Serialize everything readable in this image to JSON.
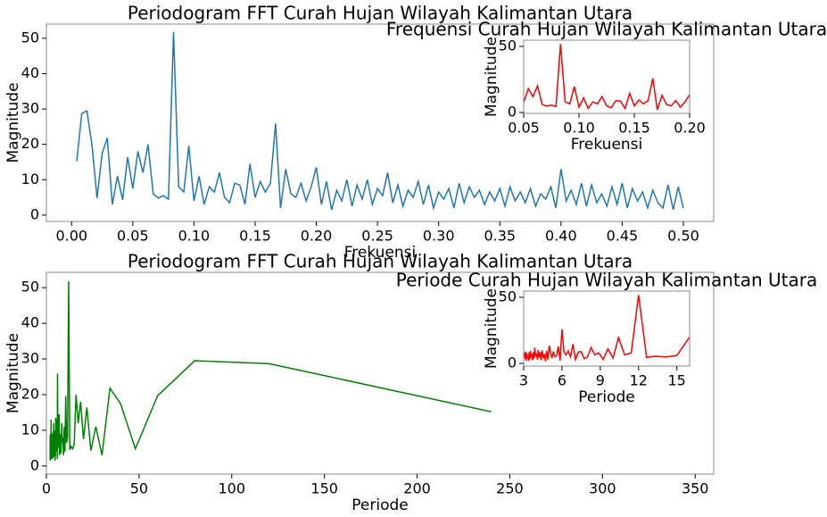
{
  "chart_data": [
    {
      "type": "line",
      "title": "Periodogram FFT Curah Hujan Wilayah Kalimantan Utara",
      "xlabel": "Frekuensi",
      "ylabel": "Magnitude",
      "color": "#1f77b4",
      "x": [
        0.0042,
        0.0083,
        0.0125,
        0.0167,
        0.0208,
        0.025,
        0.0292,
        0.0333,
        0.0375,
        0.0417,
        0.0458,
        0.05,
        0.0542,
        0.0583,
        0.0625,
        0.0667,
        0.0708,
        0.075,
        0.0792,
        0.0833,
        0.0875,
        0.0917,
        0.0958,
        0.1,
        0.1042,
        0.1083,
        0.1125,
        0.1167,
        0.1208,
        0.125,
        0.1292,
        0.1333,
        0.1375,
        0.1417,
        0.1458,
        0.15,
        0.1542,
        0.1583,
        0.1625,
        0.1667,
        0.1708,
        0.175,
        0.1792,
        0.1833,
        0.1875,
        0.1917,
        0.1958,
        0.2,
        0.2042,
        0.2083,
        0.2125,
        0.2167,
        0.2208,
        0.225,
        0.2292,
        0.2333,
        0.2375,
        0.2417,
        0.2458,
        0.25,
        0.2542,
        0.2583,
        0.2625,
        0.2667,
        0.2708,
        0.275,
        0.2792,
        0.2833,
        0.2875,
        0.2917,
        0.2958,
        0.3,
        0.3042,
        0.3083,
        0.3125,
        0.3167,
        0.3208,
        0.325,
        0.3292,
        0.3333,
        0.3375,
        0.3417,
        0.3458,
        0.35,
        0.3542,
        0.3583,
        0.3625,
        0.3667,
        0.3708,
        0.375,
        0.3792,
        0.3833,
        0.3875,
        0.3917,
        0.3958,
        0.4,
        0.4042,
        0.4083,
        0.4125,
        0.4167,
        0.4208,
        0.425,
        0.4292,
        0.4333,
        0.4375,
        0.4417,
        0.4458,
        0.45,
        0.4542,
        0.4583,
        0.4625,
        0.4667,
        0.4708,
        0.475,
        0.4792,
        0.4833,
        0.4875,
        0.4917,
        0.4958,
        0.5
      ],
      "values": [
        15.2,
        28.7,
        29.5,
        19.7,
        4.8,
        17.5,
        21.8,
        3.0,
        11.0,
        4.3,
        16.4,
        7.5,
        18.0,
        12.0,
        20.0,
        6.0,
        4.8,
        5.5,
        4.5,
        51.8,
        8.0,
        6.5,
        19.6,
        4.0,
        11.0,
        3.0,
        8.0,
        6.5,
        12.0,
        5.0,
        3.5,
        9.0,
        8.5,
        3.0,
        14.5,
        5.0,
        9.5,
        6.5,
        9.0,
        25.9,
        2.0,
        13.0,
        6.0,
        5.0,
        9.0,
        4.0,
        8.0,
        13.5,
        3.0,
        9.5,
        1.5,
        7.0,
        4.0,
        10.0,
        2.5,
        8.5,
        4.5,
        10.0,
        3.0,
        7.5,
        5.5,
        12.0,
        3.5,
        8.5,
        2.5,
        7.0,
        5.0,
        9.5,
        3.0,
        8.5,
        2.0,
        6.5,
        4.5,
        7.5,
        2.0,
        9.0,
        3.5,
        8.0,
        5.0,
        7.0,
        3.0,
        6.5,
        4.0,
        7.5,
        2.5,
        8.0,
        4.0,
        6.5,
        3.5,
        7.5,
        2.5,
        6.0,
        4.5,
        8.0,
        2.0,
        13.0,
        4.0,
        7.0,
        3.0,
        9.0,
        2.5,
        8.5,
        3.5,
        6.0,
        2.5,
        8.0,
        3.0,
        9.0,
        2.0,
        7.5,
        4.0,
        6.5,
        2.0,
        7.0,
        3.5,
        2.0,
        8.5,
        1.5,
        8.0,
        2.0
      ],
      "xlim": [
        -0.0206,
        0.5248
      ],
      "ylim": [
        -1.8,
        54.0
      ],
      "xticks": [
        {
          "value": 0,
          "label": "0.00"
        },
        0.05,
        {
          "value": 0.1,
          "label": "0.10"
        },
        0.15,
        {
          "value": 0.2,
          "label": "0.20"
        },
        0.25,
        {
          "value": 0.3,
          "label": "0.30"
        },
        0.35,
        {
          "value": 0.4,
          "label": "0.40"
        },
        0.45,
        {
          "value": 0.5,
          "label": "0.50"
        }
      ],
      "yticks": [
        0,
        10,
        20,
        30,
        40,
        50
      ],
      "inset": {
        "title": "Frequensi Curah Hujan Wilayah Kalimantan Utara",
        "xlabel": "Frekuensi",
        "ylabel": "Magnitude",
        "color": "#ff0000",
        "xlim": [
          0.05,
          0.2
        ],
        "ylim": [
          -0.7,
          54.7
        ],
        "xticks": [
          0.05,
          {
            "value": 0.1,
            "label": "0.10"
          },
          0.15,
          {
            "value": 0.2,
            "label": "0.20"
          }
        ],
        "yticks": [
          0,
          50
        ]
      }
    },
    {
      "type": "line",
      "title": "Periodogram FFT Curah Hujan Wilayah Kalimantan Utara",
      "xlabel": "Periode",
      "ylabel": "Magnitude",
      "color": "#008000",
      "x": [
        240,
        120,
        80,
        60,
        48,
        40,
        34.29,
        30,
        26.67,
        24,
        21.82,
        20,
        18.46,
        17.14,
        16,
        15,
        14.12,
        13.33,
        12.63,
        12,
        11.43,
        10.91,
        10.43,
        10,
        9.6,
        9.23,
        8.89,
        8.57,
        8.28,
        8,
        7.74,
        7.5,
        7.27,
        7.06,
        6.86,
        6.67,
        6.49,
        6.32,
        6.15,
        6,
        5.85,
        5.71,
        5.58,
        5.45,
        5.33,
        5.22,
        5.11,
        5,
        4.9,
        4.8,
        4.71,
        4.62,
        4.53,
        4.44,
        4.36,
        4.29,
        4.21,
        4.14,
        4.07,
        4,
        3.93,
        3.87,
        3.81,
        3.75,
        3.69,
        3.64,
        3.58,
        3.53,
        3.48,
        3.43,
        3.38,
        3.33,
        3.29,
        3.24,
        3.2,
        3.16,
        3.12,
        3.08,
        3.04,
        3,
        2.96,
        2.93,
        2.89,
        2.86,
        2.82,
        2.79,
        2.76,
        2.73,
        2.7,
        2.67,
        2.64,
        2.61,
        2.58,
        2.55,
        2.53,
        2.5,
        2.47,
        2.45,
        2.42,
        2.4,
        2.38,
        2.35,
        2.33,
        2.31,
        2.29,
        2.26,
        2.24,
        2.22,
        2.2,
        2.18,
        2.16,
        2.14,
        2.12,
        2.11,
        2.09,
        2.07,
        2.05,
        2.03,
        2.02,
        2
      ],
      "values": [
        15.2,
        28.7,
        29.5,
        19.7,
        4.8,
        17.5,
        21.8,
        3.0,
        11.0,
        4.3,
        16.4,
        7.5,
        18.0,
        12.0,
        20.0,
        6.0,
        4.8,
        5.5,
        4.5,
        51.8,
        8.0,
        6.5,
        19.6,
        4.0,
        11.0,
        3.0,
        8.0,
        6.5,
        12.0,
        5.0,
        3.5,
        9.0,
        8.5,
        3.0,
        14.5,
        5.0,
        9.5,
        6.5,
        9.0,
        25.9,
        2.0,
        13.0,
        6.0,
        5.0,
        9.0,
        4.0,
        8.0,
        13.5,
        3.0,
        9.5,
        1.5,
        7.0,
        4.0,
        10.0,
        2.5,
        8.5,
        4.5,
        10.0,
        3.0,
        7.5,
        5.5,
        12.0,
        3.5,
        8.5,
        2.5,
        7.0,
        5.0,
        9.5,
        3.0,
        8.5,
        2.0,
        6.5,
        4.5,
        7.5,
        2.0,
        9.0,
        3.5,
        8.0,
        5.0,
        7.0,
        3.0,
        6.5,
        4.0,
        7.5,
        2.5,
        8.0,
        4.0,
        6.5,
        3.5,
        7.5,
        2.5,
        6.0,
        4.5,
        8.0,
        2.0,
        13.0,
        4.0,
        7.0,
        3.0,
        9.0,
        2.5,
        8.5,
        3.5,
        6.0,
        2.5,
        8.0,
        3.0,
        9.0,
        2.0,
        7.5,
        4.0,
        6.5,
        2.0,
        7.0,
        3.5,
        2.0,
        8.5,
        1.5,
        8.0,
        2.0
      ],
      "xlim": [
        0,
        360
      ],
      "ylim": [
        -2.3,
        54.3
      ],
      "xticks": [
        0,
        50,
        100,
        150,
        200,
        250,
        300,
        350
      ],
      "yticks": [
        0,
        10,
        20,
        30,
        40,
        50
      ],
      "inset": {
        "title": "Periode Curah Hujan Wilayah Kalimantan Utara",
        "xlabel": "Periode",
        "ylabel": "Magnitude",
        "color": "#ff0000",
        "xlim": [
          3,
          16
        ],
        "ylim": [
          -2,
          54.7
        ],
        "xticks": [
          3,
          6,
          9,
          12,
          15
        ],
        "yticks": [
          0,
          50
        ]
      }
    }
  ]
}
